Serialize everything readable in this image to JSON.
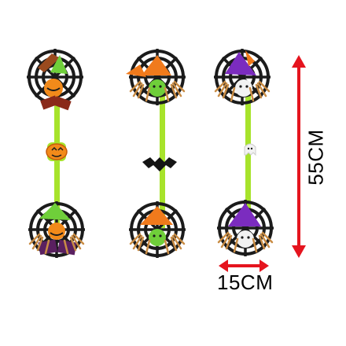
{
  "product": {
    "dimensions": {
      "width_label": "15CM",
      "height_label": "55CM",
      "arrow_color": "#e5141e"
    },
    "colors": {
      "web": "#1b1b1b",
      "ribbon": "#a7e32b",
      "witch_hat_green": "#6fcf3a",
      "witch_hat_orange": "#f07a1c",
      "witch_hat_purple": "#7b2cbf",
      "pumpkin": "#f28a1a",
      "straw": "#d8a25a",
      "bat": "#141414",
      "ghost": "#f2f2f2"
    },
    "strands": [
      {
        "charm": "pumpkin-charm",
        "top_head": "pumpkin",
        "bottom_head": "pumpkin"
      },
      {
        "charm": "bat-charm",
        "top_head": "green-face",
        "bottom_head": "green-face"
      },
      {
        "charm": "ghost-charm",
        "top_head": "skull-face",
        "bottom_head": "skull-face"
      }
    ]
  }
}
